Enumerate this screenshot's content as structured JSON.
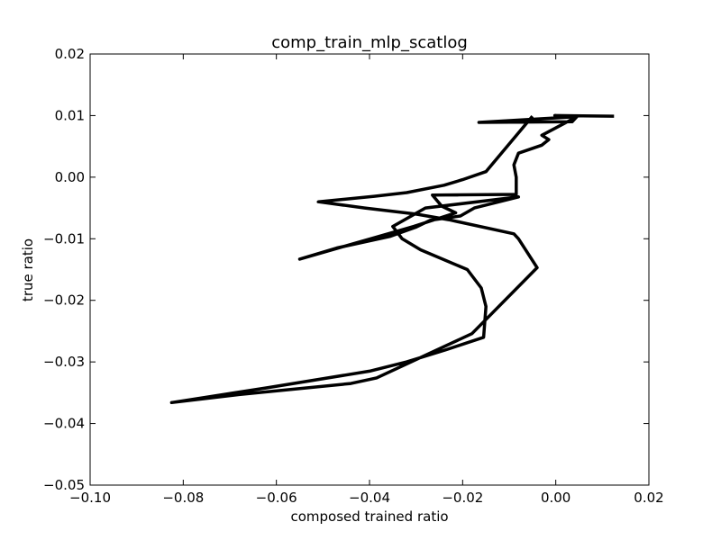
{
  "chart_data": {
    "type": "line",
    "title": "comp_train_mlp_scatlog",
    "xlabel": "composed trained ratio",
    "ylabel": "true ratio",
    "xlim": [
      -0.1,
      0.02
    ],
    "ylim": [
      -0.05,
      0.02
    ],
    "xticks": [
      -0.1,
      -0.08,
      -0.06,
      -0.04,
      -0.02,
      0.0,
      0.02
    ],
    "yticks": [
      -0.05,
      -0.04,
      -0.03,
      -0.02,
      -0.01,
      0.0,
      0.01,
      0.02
    ],
    "xtick_labels": [
      "−0.10",
      "−0.08",
      "−0.06",
      "−0.04",
      "−0.02",
      "0.00",
      "0.02"
    ],
    "ytick_labels": [
      "−0.05",
      "−0.04",
      "−0.03",
      "−0.02",
      "−0.01",
      "0.00",
      "0.01",
      "0.02"
    ],
    "grid": false,
    "legend": "none",
    "series": [
      {
        "color": "#000000",
        "x": [
          0.0125,
          -0.0002,
          0.0038,
          -0.0165,
          0.0035,
          0.0045,
          -0.003,
          -0.0015,
          -0.003,
          -0.008,
          -0.009,
          -0.0085,
          -0.0085,
          -0.0265,
          -0.0245,
          -0.0215,
          -0.0305,
          -0.055,
          -0.047,
          -0.0355,
          -0.03,
          -0.027,
          -0.0205,
          -0.0175,
          -0.008,
          -0.028,
          -0.035,
          -0.033,
          -0.029,
          -0.019,
          -0.016,
          -0.015,
          -0.0155,
          -0.0235,
          -0.032,
          -0.04,
          -0.062,
          -0.0825,
          -0.068,
          -0.044,
          -0.0385,
          -0.018,
          -0.004,
          -0.008,
          -0.009,
          -0.023,
          -0.03,
          -0.041,
          -0.051,
          -0.039,
          -0.032,
          -0.024,
          -0.02,
          -0.015,
          -0.005
        ],
        "y": [
          0.0099,
          0.01,
          0.0098,
          0.0089,
          0.009,
          0.0098,
          0.0068,
          0.0061,
          0.0052,
          0.0039,
          0.002,
          0.0,
          -0.0028,
          -0.0029,
          -0.0047,
          -0.0058,
          -0.008,
          -0.0133,
          -0.0115,
          -0.0096,
          -0.0081,
          -0.007,
          -0.0063,
          -0.005,
          -0.0032,
          -0.005,
          -0.008,
          -0.01,
          -0.0118,
          -0.015,
          -0.018,
          -0.021,
          -0.026,
          -0.028,
          -0.03,
          -0.0315,
          -0.0342,
          -0.0366,
          -0.0353,
          -0.0335,
          -0.0326,
          -0.0254,
          -0.0147,
          -0.01,
          -0.0092,
          -0.0069,
          -0.006,
          -0.005,
          -0.004,
          -0.0031,
          -0.0025,
          -0.0013,
          -0.0004,
          0.0009,
          0.0099
        ]
      }
    ]
  }
}
